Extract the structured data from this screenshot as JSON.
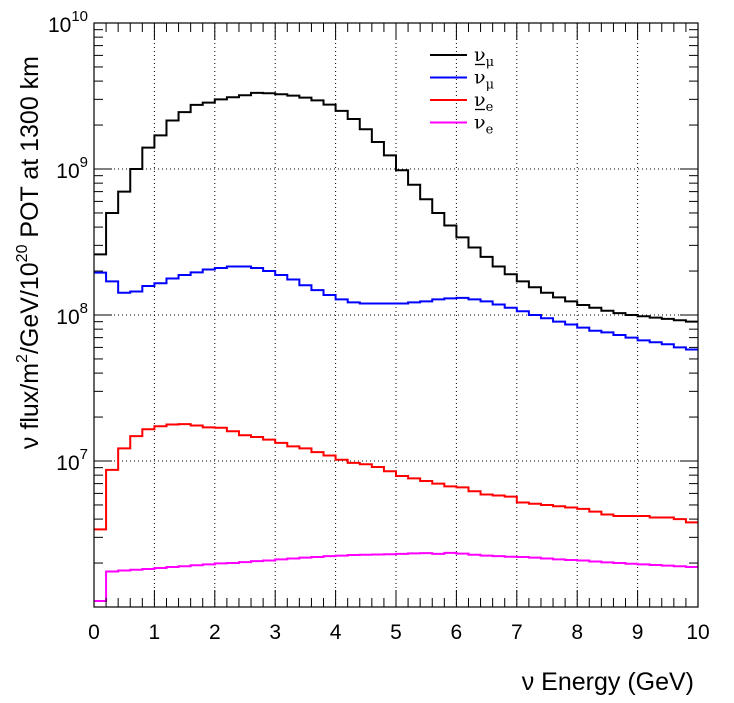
{
  "chart_data": {
    "type": "line",
    "title": "",
    "xlabel": "ν Energy (GeV)",
    "ylabel_prefix": "ν flux/m",
    "ylabel_sup1": "2",
    "ylabel_mid": "/GeV/10",
    "ylabel_sup2": "20",
    "ylabel_suffix": " POT at 1300 km",
    "x_scale": "linear",
    "y_scale": "log",
    "xlim": [
      0,
      10
    ],
    "ylim": [
      1000000,
      10000000000
    ],
    "grid": true,
    "legend_position": "top-right",
    "x_ticks": [
      "0",
      "1",
      "2",
      "3",
      "4",
      "5",
      "6",
      "7",
      "8",
      "9",
      "10"
    ],
    "y_ticks": [
      {
        "value": 10000000,
        "base": "10",
        "exp": "7"
      },
      {
        "value": 100000000,
        "base": "10",
        "exp": "8"
      },
      {
        "value": 1000000000,
        "base": "10",
        "exp": "9"
      },
      {
        "value": 10000000000,
        "base": "10",
        "exp": "10"
      }
    ],
    "bin_edges": [
      0,
      0.2,
      0.4,
      0.6,
      0.8,
      1.0,
      1.2,
      1.4,
      1.6,
      1.8,
      2.0,
      2.2,
      2.4,
      2.6,
      2.8,
      3.0,
      3.2,
      3.4,
      3.6,
      3.8,
      4.0,
      4.2,
      4.4,
      4.6,
      4.8,
      5.0,
      5.2,
      5.4,
      5.6,
      5.8,
      6.0,
      6.2,
      6.4,
      6.6,
      6.8,
      7.0,
      7.2,
      7.4,
      7.6,
      7.8,
      8.0,
      8.2,
      8.4,
      8.6,
      8.8,
      9.0,
      9.2,
      9.4,
      9.6,
      9.8,
      10.0
    ],
    "series": [
      {
        "name": "ν_μ",
        "label_main": "ν",
        "label_sub": "μ",
        "bar": false,
        "color": "#000000",
        "values": [
          260000000,
          500000000,
          700000000,
          1000000000,
          1400000000,
          1700000000,
          2150000000,
          2450000000,
          2750000000,
          2850000000,
          3000000000,
          3100000000,
          3200000000,
          3320000000,
          3300000000,
          3250000000,
          3180000000,
          3080000000,
          2950000000,
          2760000000,
          2500000000,
          2200000000,
          1870000000,
          1530000000,
          1240000000,
          980000000,
          780000000,
          620000000,
          500000000,
          410000000,
          340000000,
          290000000,
          250000000,
          215000000,
          190000000,
          170000000,
          155000000,
          142000000,
          132000000,
          124000000,
          117000000,
          112000000,
          107000000,
          103000000,
          100000000,
          98000000,
          96000000,
          94000000,
          92000000,
          90000000
        ]
      },
      {
        "name": "ν̄_μ",
        "label_main": "ν",
        "label_sub": "μ",
        "bar": true,
        "color": "#0000ff",
        "values": [
          195000000,
          170000000,
          142000000,
          145000000,
          158000000,
          165000000,
          178000000,
          188000000,
          196000000,
          205000000,
          210000000,
          215000000,
          215000000,
          210000000,
          200000000,
          188000000,
          175000000,
          160000000,
          148000000,
          137000000,
          128000000,
          122000000,
          120000000,
          120000000,
          120000000,
          120000000,
          122000000,
          124000000,
          128000000,
          130000000,
          131000000,
          128000000,
          124000000,
          118000000,
          112000000,
          106000000,
          100000000,
          95000000,
          90000000,
          86000000,
          82000000,
          78000000,
          76000000,
          73000000,
          70000000,
          67000000,
          65000000,
          63000000,
          60000000,
          58000000
        ]
      },
      {
        "name": "ν_e",
        "label_main": "ν",
        "label_sub": "e",
        "bar": false,
        "color": "#ff0000",
        "values": [
          3400000,
          8700000,
          12200000,
          14800000,
          16500000,
          17300000,
          17800000,
          17900000,
          17500000,
          17000000,
          16900000,
          16000000,
          15000000,
          14600000,
          14000000,
          13300000,
          12600000,
          12200000,
          11500000,
          10900000,
          10200000,
          9700000,
          9500000,
          9100000,
          8500000,
          7900000,
          7600000,
          7300000,
          7000000,
          6700000,
          6600000,
          6200000,
          5900000,
          5800000,
          5700000,
          5200000,
          5100000,
          5000000,
          4900000,
          4800000,
          4700000,
          4500000,
          4300000,
          4200000,
          4200000,
          4200000,
          4100000,
          4100000,
          4000000,
          3800000
        ]
      },
      {
        "name": "ν̄_e",
        "label_main": "ν",
        "label_sub": "e",
        "bar": true,
        "color": "#ff00ff",
        "values": [
          1100000,
          1750000,
          1780000,
          1800000,
          1820000,
          1850000,
          1880000,
          1900000,
          1930000,
          1960000,
          1990000,
          2000000,
          2030000,
          2060000,
          2080000,
          2120000,
          2150000,
          2180000,
          2200000,
          2230000,
          2250000,
          2270000,
          2280000,
          2290000,
          2300000,
          2310000,
          2330000,
          2340000,
          2310000,
          2350000,
          2320000,
          2280000,
          2250000,
          2230000,
          2210000,
          2200000,
          2180000,
          2150000,
          2120000,
          2100000,
          2080000,
          2050000,
          2020000,
          2000000,
          1980000,
          1960000,
          1940000,
          1920000,
          1900000,
          1880000
        ]
      }
    ]
  }
}
